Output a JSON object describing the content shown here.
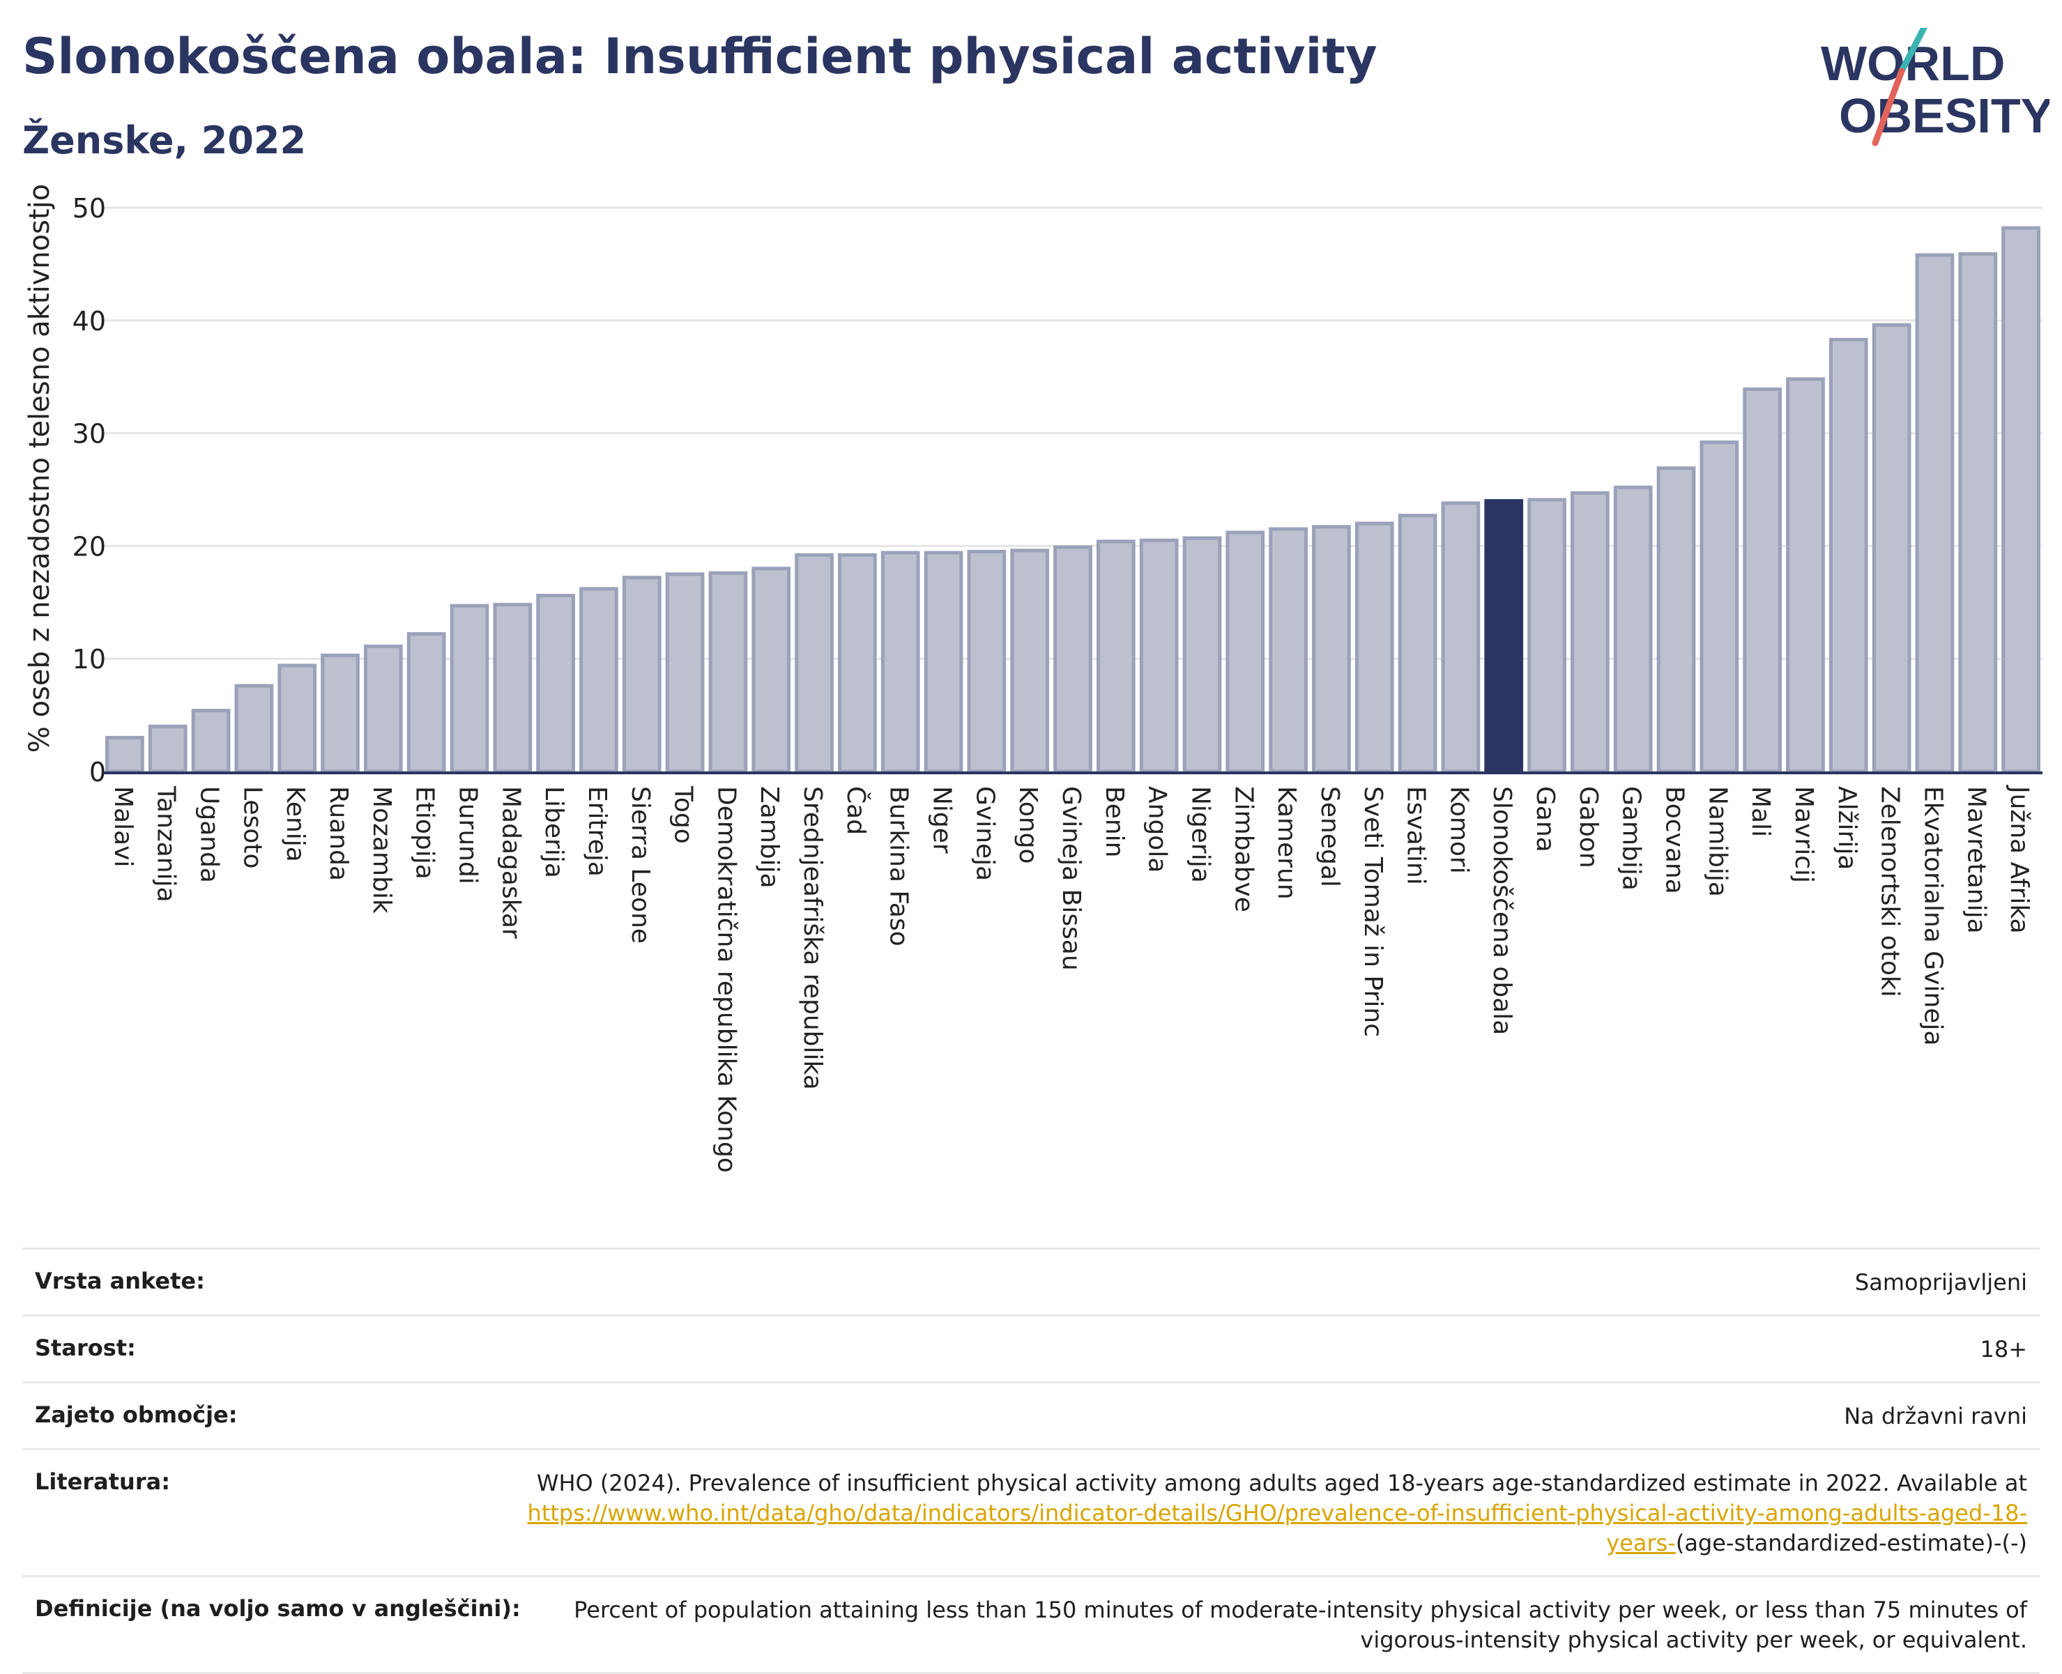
{
  "header": {
    "title": "Slonokoščena obala: Insufficient physical activity",
    "subtitle": "Ženske, 2022"
  },
  "logo": {
    "line1": "WORLD",
    "line2": "OBESITY"
  },
  "colors": {
    "bar": "#bcc0cf",
    "bar_edge": "#9aa1b9",
    "highlight": "#2b3561",
    "text_dark": "#2b3561",
    "link": "#d9a400"
  },
  "chart_data": {
    "type": "bar",
    "ylabel": "% oseb z nezadostno telesno aktivnostjo",
    "ylim": [
      0,
      50
    ],
    "yticks": [
      0,
      10,
      20,
      30,
      40,
      50
    ],
    "grid": true,
    "highlight": "Slonokoščena obala",
    "categories": [
      "Malavi",
      "Tanzanija",
      "Uganda",
      "Lesoto",
      "Kenija",
      "Ruanda",
      "Mozambik",
      "Etiopija",
      "Burundi",
      "Madagaskar",
      "Liberija",
      "Eritreja",
      "Sierra Leone",
      "Togo",
      "Demokratična republika Kongo",
      "Zambija",
      "Srednjeafriška republika",
      "Čad",
      "Burkina Faso",
      "Niger",
      "Gvineja",
      "Kongo",
      "Gvineja Bissau",
      "Benin",
      "Angola",
      "Nigerija",
      "Zimbabve",
      "Kamerun",
      "Senegal",
      "Sveti Tomaž in Princ",
      "Esvatini",
      "Komori",
      "Slonokoščena obala",
      "Gana",
      "Gabon",
      "Gambija",
      "Bocvana",
      "Namibija",
      "Mali",
      "Mavricij",
      "Alžirija",
      "Zelenortski otoki",
      "Ekvatorialna Gvineja",
      "Mavretanija",
      "Južna Afrika"
    ],
    "values": [
      3.0,
      4.0,
      5.4,
      7.6,
      9.4,
      10.3,
      11.1,
      12.2,
      14.7,
      14.8,
      15.6,
      16.2,
      17.2,
      17.5,
      17.6,
      18.0,
      19.2,
      19.2,
      19.4,
      19.4,
      19.5,
      19.6,
      19.9,
      20.4,
      20.5,
      20.7,
      21.2,
      21.5,
      21.7,
      22.0,
      22.7,
      23.8,
      24.0,
      24.1,
      24.7,
      25.2,
      26.9,
      29.2,
      33.9,
      34.8,
      38.3,
      39.6,
      45.8,
      45.9,
      48.2
    ]
  },
  "info": {
    "survey_label": "Vrsta ankete:",
    "survey_value": "Samoprijavljeni",
    "age_label": "Starost:",
    "age_value": "18+",
    "coverage_label": "Zajeto območje:",
    "coverage_value": "Na državni ravni",
    "lit_label": "Literatura:",
    "lit_text": "WHO (2024). Prevalence of insufficient physical activity among adults aged 18-years age-standardized estimate in 2022. Available at",
    "lit_link": "https://www.who.int/data/gho/data/indicators/indicator-details/GHO/prevalence-of-insufficient-physical-activity-among-adults-aged-18-years-",
    "lit_tail": "(age-standardized-estimate)-(-)",
    "def_label": "Definicije (na voljo samo v angleščini):",
    "def_value": "Percent of population attaining less than 150 minutes of moderate-intensity physical activity per week, or less than 75 minutes of vigorous-intensity physical activity per week, or equivalent."
  }
}
